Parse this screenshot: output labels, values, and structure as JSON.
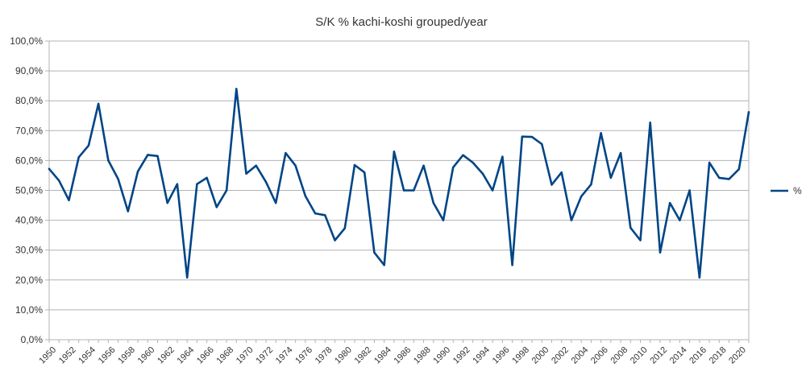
{
  "chart_data": {
    "type": "line",
    "title": "S/K % kachi-koshi grouped/year",
    "xlabel": "",
    "ylabel": "",
    "ylim": [
      0,
      100
    ],
    "y_ticks": [
      "0,0%",
      "10,0%",
      "20,0%",
      "30,0%",
      "40,0%",
      "50,0%",
      "60,0%",
      "70,0%",
      "80,0%",
      "90,0%",
      "100,0%"
    ],
    "x_tick_labels": [
      "1950",
      "1952",
      "1954",
      "1956",
      "1958",
      "1960",
      "1962",
      "1964",
      "1966",
      "1968",
      "1970",
      "1972",
      "1974",
      "1976",
      "1978",
      "1980",
      "1982",
      "1984",
      "1986",
      "1988",
      "1990",
      "1992",
      "1994",
      "1996",
      "1998",
      "2000",
      "2002",
      "2004",
      "2006",
      "2008",
      "2010",
      "2012",
      "2014",
      "2016",
      "2018",
      "2020"
    ],
    "grid": true,
    "legend_position": "right",
    "x": [
      1950,
      1951,
      1952,
      1953,
      1954,
      1955,
      1956,
      1957,
      1958,
      1959,
      1960,
      1961,
      1962,
      1963,
      1964,
      1965,
      1966,
      1967,
      1968,
      1969,
      1970,
      1971,
      1972,
      1973,
      1974,
      1975,
      1976,
      1977,
      1978,
      1979,
      1980,
      1981,
      1982,
      1983,
      1984,
      1985,
      1986,
      1987,
      1988,
      1989,
      1990,
      1991,
      1992,
      1993,
      1994,
      1995,
      1996,
      1997,
      1998,
      1999,
      2000,
      2001,
      2002,
      2003,
      2004,
      2005,
      2006,
      2007,
      2008,
      2009,
      2010,
      2011,
      2012,
      2013,
      2014,
      2015,
      2016,
      2017,
      2018,
      2019,
      2020,
      2021
    ],
    "series": [
      {
        "name": "%",
        "color": "#004586",
        "values": [
          57.2,
          53.3,
          46.7,
          61.1,
          65,
          79,
          60,
          53.8,
          43,
          56.3,
          61.9,
          61.5,
          45.8,
          52.1,
          20.8,
          52.1,
          54.2,
          44.4,
          50,
          84,
          55.6,
          58.3,
          52.8,
          45.8,
          62.5,
          58.3,
          48.1,
          42.3,
          41.7,
          33.3,
          37.3,
          58.5,
          56,
          29.2,
          25,
          63,
          50,
          50,
          58.3,
          45.8,
          40,
          57.7,
          61.8,
          59.3,
          55.6,
          50,
          61.3,
          25,
          68,
          67.9,
          65.5,
          51.9,
          56,
          40,
          48,
          52,
          69.2,
          54.2,
          62.5,
          37.5,
          33.3,
          72.7,
          29.2,
          45.8,
          40,
          50,
          20.8,
          59.3,
          54.2,
          53.8,
          57.1,
          76.2
        ]
      }
    ]
  }
}
